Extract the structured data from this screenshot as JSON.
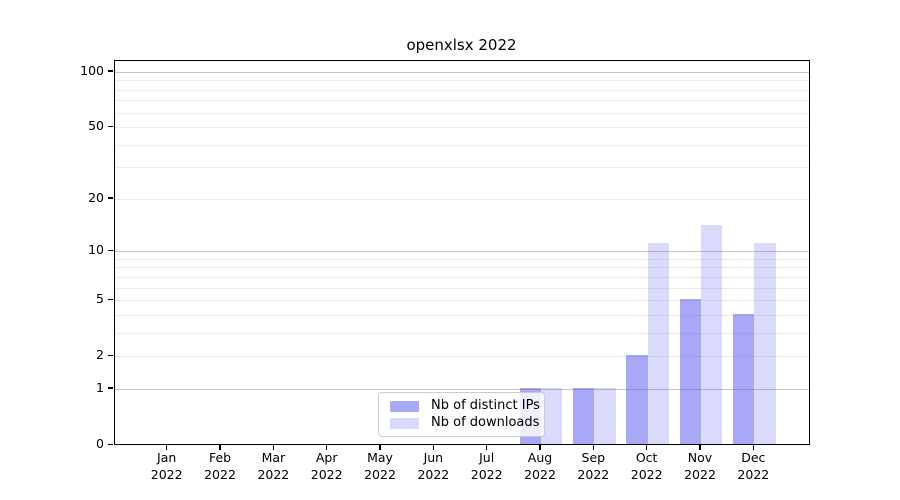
{
  "title": "openxlsx 2022",
  "legend": {
    "items": [
      {
        "label": "Nb of distinct IPs",
        "color": "rgba(85,85,240,0.51)"
      },
      {
        "label": "Nb of downloads",
        "color": "rgba(85,85,240,0.22)"
      }
    ]
  },
  "colors": {
    "ips_bar": "rgba(85,85,240,0.51)",
    "downloads_bar": "rgba(85,85,240,0.22)",
    "grid_major": "#c6c6c6",
    "grid_minor": "#ebebeb",
    "axis": "#000000"
  },
  "chart_data": {
    "type": "bar",
    "title": "openxlsx 2022",
    "categories": [
      "Jan 2022",
      "Feb 2022",
      "Mar 2022",
      "Apr 2022",
      "May 2022",
      "Jun 2022",
      "Jul 2022",
      "Aug 2022",
      "Sep 2022",
      "Oct 2022",
      "Nov 2022",
      "Dec 2022"
    ],
    "month_labels": [
      "Jan",
      "Feb",
      "Mar",
      "Apr",
      "May",
      "Jun",
      "Jul",
      "Aug",
      "Sep",
      "Oct",
      "Nov",
      "Dec"
    ],
    "year_label": "2022",
    "series": [
      {
        "name": "Nb of distinct IPs",
        "values": [
          0,
          0,
          0,
          0,
          0,
          0,
          0,
          1,
          1,
          2,
          5,
          4
        ]
      },
      {
        "name": "Nb of downloads",
        "values": [
          0,
          0,
          0,
          0,
          0,
          0,
          0,
          1,
          1,
          11,
          14,
          11
        ]
      }
    ],
    "xlabel": "",
    "ylabel": "",
    "yscale": "log1p",
    "ylim": [
      0,
      100
    ],
    "ytick_values": [
      0,
      1,
      2,
      5,
      10,
      20,
      50,
      100
    ],
    "ytick_labels": [
      "0",
      "1",
      "2",
      "5",
      "10",
      "20",
      "50",
      "100"
    ],
    "major_grid_values": [
      1,
      10,
      100
    ],
    "minor_grid_values": [
      2,
      3,
      4,
      5,
      6,
      7,
      8,
      9,
      20,
      30,
      40,
      50,
      60,
      70,
      80,
      90
    ],
    "grid": "on",
    "legend_position": "lower center"
  }
}
